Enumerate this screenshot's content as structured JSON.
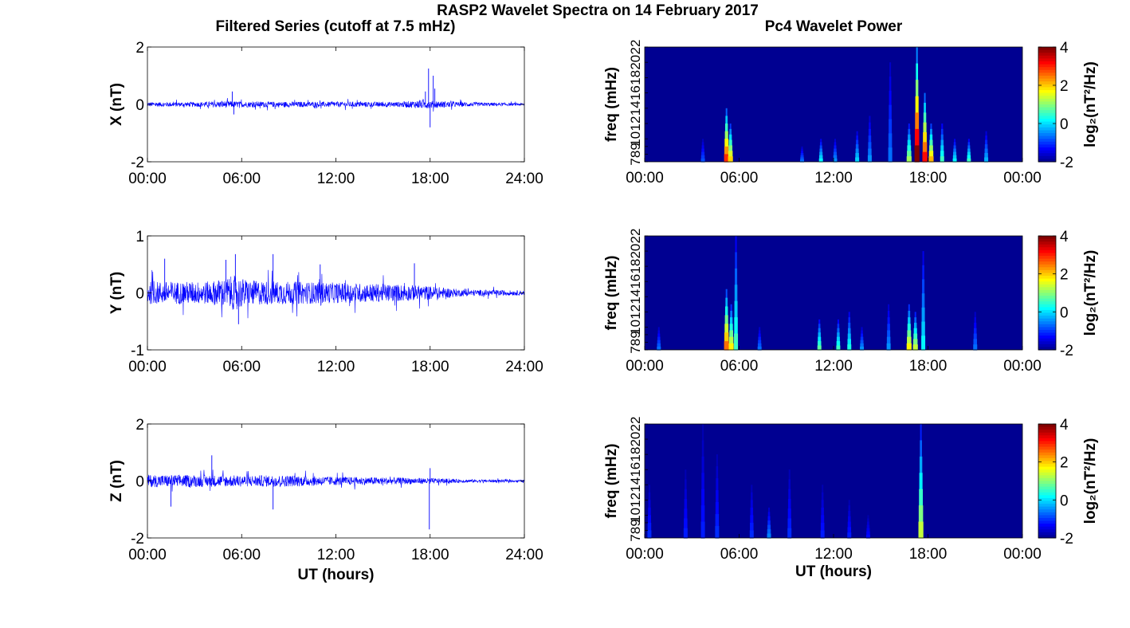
{
  "suptitle": "RASP2 Wavelet Spectra on 14 February 2017",
  "left_title": "Filtered Series (cutoff at 7.5 mHz)",
  "right_title": "Pc4 Wavelet Power",
  "left_xlabel": "UT (hours)",
  "right_xlabel": "UT (hours)",
  "colorbar_label": "log₂(nT²/Hz)",
  "colors": {
    "trace": "#0000ff",
    "spectrum_background": "#00008f"
  },
  "chart_data": [
    {
      "type": "line",
      "component": "X",
      "ylabel": "X (nT)",
      "ylim": [
        -2,
        2
      ],
      "yticks": [
        -2,
        0,
        2
      ],
      "xlim_hours": [
        0,
        24
      ],
      "xticks": [
        "00:00",
        "06:00",
        "12:00",
        "18:00",
        "24:00"
      ],
      "baseline_noise_nT": [
        [
          0,
          0.08
        ],
        [
          3,
          0.08
        ],
        [
          5,
          0.12
        ],
        [
          6,
          0.1
        ],
        [
          12,
          0.09
        ],
        [
          16,
          0.09
        ],
        [
          17.5,
          0.15
        ],
        [
          18.5,
          0.12
        ],
        [
          20,
          0.08
        ],
        [
          24,
          0.04
        ]
      ],
      "spikes": [
        {
          "t": 5.4,
          "v": 0.45
        },
        {
          "t": 5.5,
          "v": -0.35
        },
        {
          "t": 17.9,
          "v": 1.25
        },
        {
          "t": 18.0,
          "v": -0.8
        },
        {
          "t": 18.2,
          "v": 1.0
        },
        {
          "t": 18.3,
          "v": 0.55
        },
        {
          "t": 17.7,
          "v": 0.45
        }
      ]
    },
    {
      "type": "line",
      "component": "Y",
      "ylabel": "Y (nT)",
      "ylim": [
        -1,
        1
      ],
      "yticks": [
        -1,
        0,
        1
      ],
      "xlim_hours": [
        0,
        24
      ],
      "xticks": [
        "00:00",
        "06:00",
        "12:00",
        "18:00",
        "24:00"
      ],
      "baseline_noise_nT": [
        [
          0,
          0.2
        ],
        [
          4,
          0.2
        ],
        [
          5.5,
          0.3
        ],
        [
          6.5,
          0.22
        ],
        [
          12,
          0.18
        ],
        [
          16,
          0.15
        ],
        [
          18,
          0.12
        ],
        [
          20,
          0.06
        ],
        [
          24,
          0.04
        ]
      ],
      "spikes": [
        {
          "t": 5.6,
          "v": 0.68
        },
        {
          "t": 5.8,
          "v": -0.55
        },
        {
          "t": 8.0,
          "v": 0.68
        },
        {
          "t": 1.1,
          "v": 0.6
        },
        {
          "t": 11.0,
          "v": 0.5
        },
        {
          "t": 17.0,
          "v": 0.52
        },
        {
          "t": 5.0,
          "v": 0.58
        }
      ]
    },
    {
      "type": "line",
      "component": "Z",
      "ylabel": "Z (nT)",
      "ylim": [
        -2,
        2
      ],
      "yticks": [
        -2,
        0,
        2
      ],
      "xlim_hours": [
        0,
        24
      ],
      "xticks": [
        "00:00",
        "06:00",
        "12:00",
        "18:00",
        "24:00"
      ],
      "xlabel": "UT (hours)",
      "baseline_noise_nT": [
        [
          0,
          0.22
        ],
        [
          6,
          0.2
        ],
        [
          9,
          0.2
        ],
        [
          12,
          0.15
        ],
        [
          16,
          0.12
        ],
        [
          18,
          0.1
        ],
        [
          20,
          0.06
        ],
        [
          24,
          0.04
        ]
      ],
      "spikes": [
        {
          "t": 4.1,
          "v": 0.9
        },
        {
          "t": 18.0,
          "v": 0.45
        },
        {
          "t": 17.95,
          "v": -1.7
        },
        {
          "t": 8.0,
          "v": -1.0
        },
        {
          "t": 1.5,
          "v": -0.9
        }
      ]
    },
    {
      "type": "heatmap",
      "component": "X",
      "ylabel": "freq (mHz)",
      "ylim": [
        7,
        22
      ],
      "yticks": [
        7,
        8,
        9,
        10,
        12,
        14,
        16,
        18,
        20,
        22
      ],
      "xlim_hours": [
        0,
        24
      ],
      "xticks": [
        "00:00",
        "06:00",
        "12:00",
        "18:00",
        "00:00"
      ],
      "colorbar": {
        "label": "log₂(nT²/Hz)",
        "range": [
          -2,
          4
        ],
        "ticks": [
          -2,
          0,
          2,
          4
        ]
      },
      "background_value": -1.9,
      "events": [
        {
          "t": 5.2,
          "f_lo": 7,
          "f_hi": 14,
          "peak": 3.0
        },
        {
          "t": 5.45,
          "f_lo": 7,
          "f_hi": 12,
          "peak": 2.0
        },
        {
          "t": 3.7,
          "f_lo": 7,
          "f_hi": 10,
          "peak": -0.8
        },
        {
          "t": 10.0,
          "f_lo": 7,
          "f_hi": 9,
          "peak": -0.6
        },
        {
          "t": 11.2,
          "f_lo": 7,
          "f_hi": 10,
          "peak": 0.2
        },
        {
          "t": 12.1,
          "f_lo": 7,
          "f_hi": 10,
          "peak": -0.4
        },
        {
          "t": 13.5,
          "f_lo": 7,
          "f_hi": 11,
          "peak": 0.0
        },
        {
          "t": 14.3,
          "f_lo": 7,
          "f_hi": 13,
          "peak": -0.4
        },
        {
          "t": 15.6,
          "f_lo": 7,
          "f_hi": 20,
          "peak": -0.6
        },
        {
          "t": 16.8,
          "f_lo": 7,
          "f_hi": 12,
          "peak": 1.2
        },
        {
          "t": 17.3,
          "f_lo": 7,
          "f_hi": 22,
          "peak": 4.0
        },
        {
          "t": 17.8,
          "f_lo": 7,
          "f_hi": 16,
          "peak": 3.2
        },
        {
          "t": 18.2,
          "f_lo": 7,
          "f_hi": 12,
          "peak": 2.2
        },
        {
          "t": 18.9,
          "f_lo": 7,
          "f_hi": 12,
          "peak": 0.6
        },
        {
          "t": 19.7,
          "f_lo": 7,
          "f_hi": 10,
          "peak": 0.2
        },
        {
          "t": 20.6,
          "f_lo": 7,
          "f_hi": 10,
          "peak": 0.6
        },
        {
          "t": 21.7,
          "f_lo": 7,
          "f_hi": 11,
          "peak": -0.2
        }
      ]
    },
    {
      "type": "heatmap",
      "component": "Y",
      "ylabel": "freq (mHz)",
      "ylim": [
        7,
        22
      ],
      "yticks": [
        7,
        8,
        9,
        10,
        12,
        14,
        16,
        18,
        20,
        22
      ],
      "xlim_hours": [
        0,
        24
      ],
      "xticks": [
        "00:00",
        "06:00",
        "12:00",
        "18:00",
        "00:00"
      ],
      "colorbar": {
        "label": "log₂(nT²/Hz)",
        "range": [
          -2,
          4
        ],
        "ticks": [
          -2,
          0,
          2,
          4
        ]
      },
      "background_value": -1.9,
      "events": [
        {
          "t": 0.9,
          "f_lo": 7,
          "f_hi": 10,
          "peak": -0.6
        },
        {
          "t": 5.2,
          "f_lo": 7,
          "f_hi": 15,
          "peak": 2.6
        },
        {
          "t": 5.5,
          "f_lo": 7,
          "f_hi": 13,
          "peak": 1.8
        },
        {
          "t": 5.8,
          "f_lo": 7,
          "f_hi": 22,
          "peak": 0.6
        },
        {
          "t": 7.3,
          "f_lo": 7,
          "f_hi": 10,
          "peak": -0.6
        },
        {
          "t": 11.1,
          "f_lo": 7,
          "f_hi": 11,
          "peak": 0.8
        },
        {
          "t": 12.3,
          "f_lo": 7,
          "f_hi": 11,
          "peak": 0.6
        },
        {
          "t": 13.0,
          "f_lo": 7,
          "f_hi": 12,
          "peak": 0.4
        },
        {
          "t": 13.8,
          "f_lo": 7,
          "f_hi": 10,
          "peak": -0.4
        },
        {
          "t": 15.5,
          "f_lo": 7,
          "f_hi": 13,
          "peak": -0.4
        },
        {
          "t": 16.8,
          "f_lo": 7,
          "f_hi": 13,
          "peak": 1.8
        },
        {
          "t": 17.2,
          "f_lo": 7,
          "f_hi": 12,
          "peak": 1.4
        },
        {
          "t": 17.7,
          "f_lo": 7,
          "f_hi": 20,
          "peak": 0.2
        },
        {
          "t": 21.0,
          "f_lo": 7,
          "f_hi": 12,
          "peak": -0.6
        }
      ]
    },
    {
      "type": "heatmap",
      "component": "Z",
      "ylabel": "freq (mHz)",
      "ylim": [
        7,
        22
      ],
      "yticks": [
        7,
        8,
        9,
        10,
        12,
        14,
        16,
        18,
        20,
        22
      ],
      "xlim_hours": [
        0,
        24
      ],
      "xticks": [
        "00:00",
        "06:00",
        "12:00",
        "18:00",
        "00:00"
      ],
      "xlabel": "UT (hours)",
      "colorbar": {
        "label": "log₂(nT²/Hz)",
        "range": [
          -2,
          4
        ],
        "ticks": [
          -2,
          0,
          2,
          4
        ]
      },
      "background_value": -1.9,
      "events": [
        {
          "t": 0.3,
          "f_lo": 7,
          "f_hi": 14,
          "peak": -1.0
        },
        {
          "t": 2.6,
          "f_lo": 7,
          "f_hi": 16,
          "peak": -1.1
        },
        {
          "t": 3.7,
          "f_lo": 7,
          "f_hi": 22,
          "peak": -1.1
        },
        {
          "t": 4.6,
          "f_lo": 7,
          "f_hi": 18,
          "peak": -1.0
        },
        {
          "t": 6.8,
          "f_lo": 7,
          "f_hi": 14,
          "peak": -1.0
        },
        {
          "t": 7.9,
          "f_lo": 7,
          "f_hi": 11,
          "peak": -0.5
        },
        {
          "t": 9.2,
          "f_lo": 7,
          "f_hi": 16,
          "peak": -1.0
        },
        {
          "t": 11.3,
          "f_lo": 7,
          "f_hi": 14,
          "peak": -1.1
        },
        {
          "t": 13.0,
          "f_lo": 7,
          "f_hi": 12,
          "peak": -1.1
        },
        {
          "t": 14.2,
          "f_lo": 7,
          "f_hi": 10,
          "peak": -1.2
        },
        {
          "t": 17.55,
          "f_lo": 7,
          "f_hi": 22,
          "peak": 1.4
        }
      ]
    }
  ]
}
